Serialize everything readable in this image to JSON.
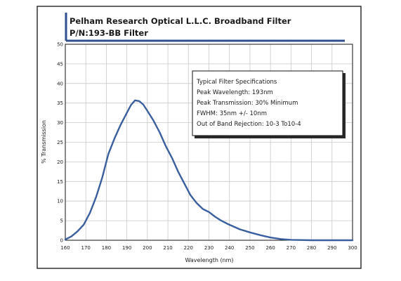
{
  "colors": {
    "curve": "#3a5f9e",
    "title_bar": "#2f4f8f",
    "grid": "#c8c8c8",
    "frame": "#111111"
  },
  "chart_data": {
    "type": "line",
    "title": "Pelham Research Optical L.L.C. Broadband Filter",
    "subtitle": "P/N:193-BB Filter",
    "xlabel": "Wavelength (nm)",
    "ylabel": "% Transmission",
    "xlim": [
      160,
      300
    ],
    "ylim": [
      0,
      50
    ],
    "x_ticks": [
      160,
      170,
      180,
      190,
      200,
      210,
      220,
      230,
      240,
      250,
      260,
      270,
      280,
      290,
      300
    ],
    "y_ticks": [
      0,
      5,
      10,
      15,
      20,
      25,
      30,
      35,
      40,
      45,
      50
    ],
    "grid": true,
    "series": [
      {
        "x": [
          160,
          163,
          166,
          169,
          172,
          175,
          178,
          181,
          184,
          187,
          190,
          192,
          194,
          196,
          198,
          200,
          203,
          206,
          209,
          212,
          215,
          218,
          221,
          224,
          227,
          230,
          233,
          236,
          239,
          242,
          245,
          250,
          255,
          260,
          265,
          270,
          275,
          280,
          285,
          290,
          300
        ],
        "y": [
          0.2,
          1.0,
          2.3,
          4.0,
          7.0,
          11.0,
          16.0,
          22.0,
          26.0,
          29.5,
          32.5,
          34.5,
          35.7,
          35.5,
          34.6,
          33.0,
          30.5,
          27.5,
          24.0,
          21.0,
          17.5,
          14.5,
          11.5,
          9.5,
          8.0,
          7.2,
          6.0,
          5.0,
          4.2,
          3.5,
          2.8,
          2.0,
          1.3,
          0.7,
          0.3,
          0.1,
          0.05,
          0.0,
          0.0,
          0.0,
          0.0
        ]
      }
    ],
    "annotations": [
      "Typical Filter Specifications",
      "Peak Wavelength: 193nm",
      "Peak Transmission: 30% Minimum",
      "FWHM: 35nm +/- 10nm",
      "Out of Band Rejection: 10-3 To10-4"
    ]
  }
}
